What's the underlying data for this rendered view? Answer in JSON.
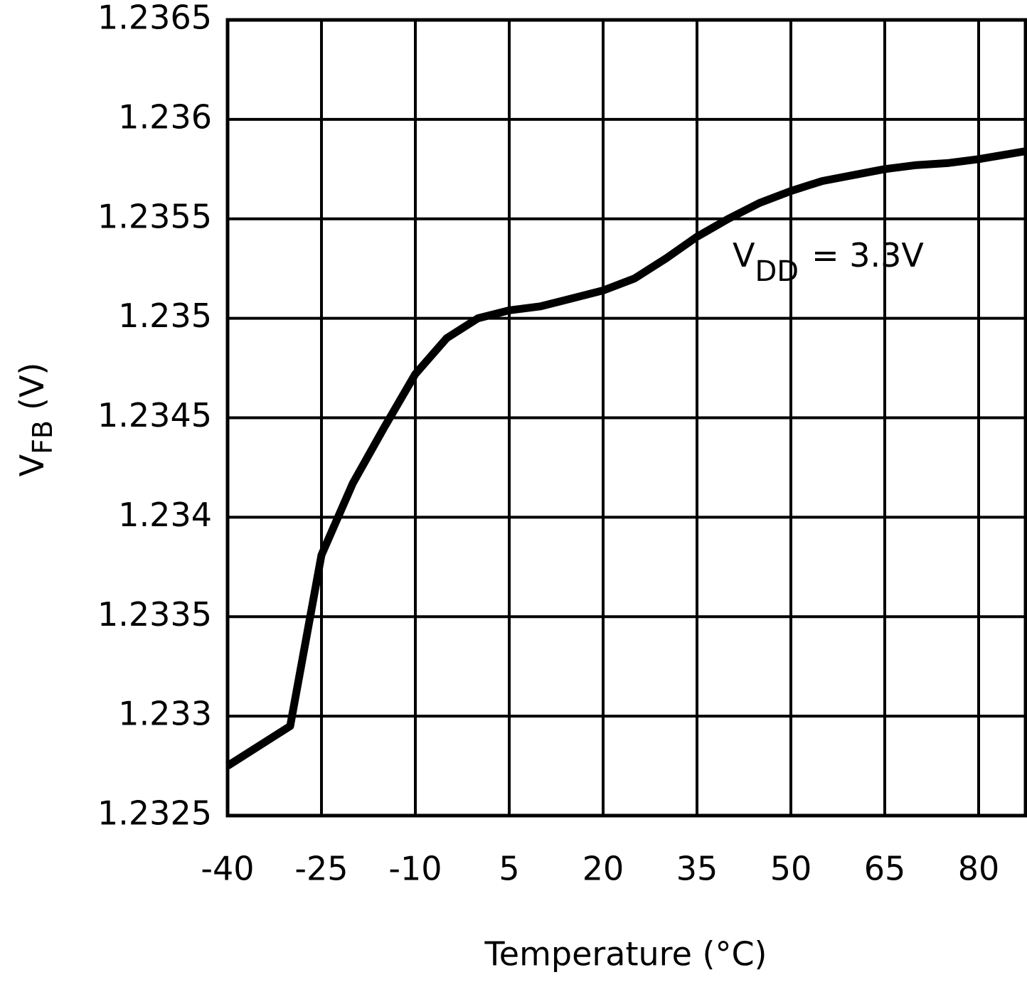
{
  "chart_data": {
    "type": "line",
    "x_label": "Temperature (°C)",
    "y_label": {
      "main": "V",
      "sub": "FB",
      "rest": "(V)"
    },
    "annotation": {
      "main": "V",
      "sub": "DD",
      "rest": "= 3.3V"
    },
    "x": [
      -40,
      -30,
      -25,
      -20,
      -15,
      -10,
      -5,
      0,
      5,
      10,
      15,
      20,
      25,
      30,
      35,
      40,
      45,
      50,
      55,
      60,
      65,
      70,
      75,
      80,
      87.5
    ],
    "series": [
      {
        "color": "#000000",
        "values": [
          1.23275,
          1.23295,
          1.23381,
          1.23417,
          1.23445,
          1.23472,
          1.2349,
          1.235,
          1.23504,
          1.23506,
          1.2351,
          1.23514,
          1.2352,
          1.2353,
          1.23541,
          1.2355,
          1.23558,
          1.23564,
          1.23569,
          1.23572,
          1.23575,
          1.23577,
          1.23578,
          1.2358,
          1.23584
        ]
      }
    ],
    "xlim": [
      -40,
      87.5
    ],
    "ylim": [
      1.2325,
      1.2365
    ],
    "xticks": [
      -40,
      -25,
      -10,
      5,
      20,
      35,
      50,
      65,
      80
    ],
    "yticks": [
      1.2325,
      1.233,
      1.2335,
      1.234,
      1.2345,
      1.235,
      1.2355,
      1.236,
      1.2365
    ],
    "grid": true
  }
}
